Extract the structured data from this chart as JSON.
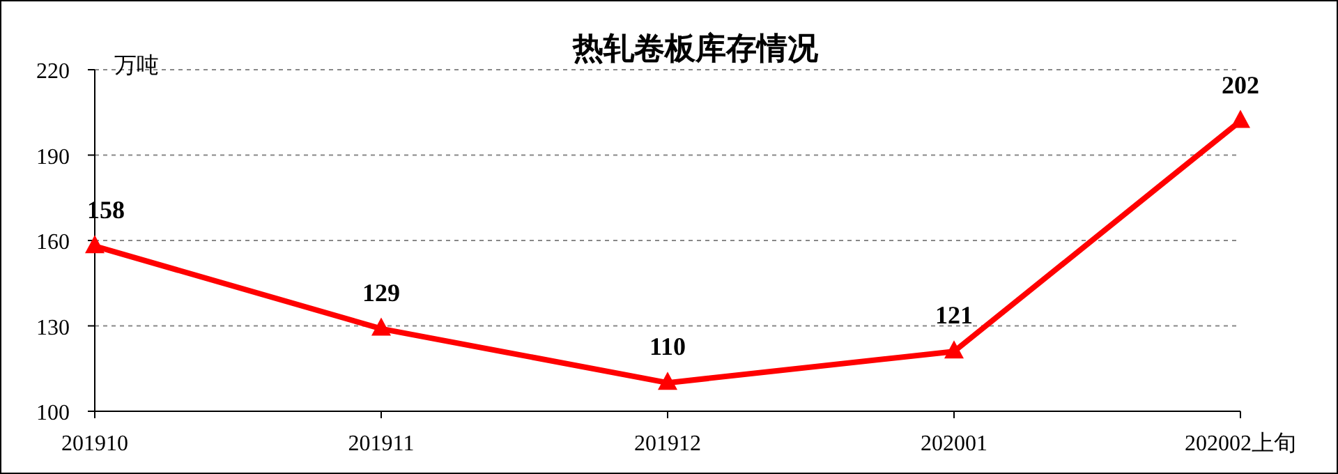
{
  "chart_data": {
    "type": "line",
    "title": "热轧卷板库存情况",
    "ylabel": "万吨",
    "categories": [
      "201910",
      "201911",
      "201912",
      "202001",
      "202002上旬"
    ],
    "series": [
      {
        "color": "#ff0000",
        "values": [
          158,
          129,
          110,
          121,
          202
        ]
      }
    ],
    "ylim": [
      100,
      220
    ],
    "yticks": [
      100,
      130,
      160,
      190,
      220
    ],
    "grid": "y",
    "marker": "triangle",
    "line_style": "solid",
    "data_labels": true
  }
}
